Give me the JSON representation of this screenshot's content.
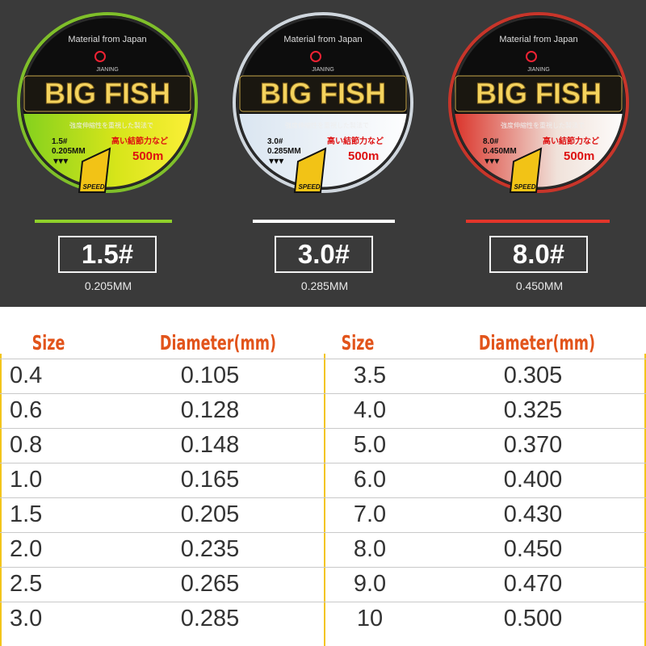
{
  "spools": [
    {
      "material": "Material from Japan",
      "brand": "JIANING",
      "title": "BIG FISH",
      "jp_line": "強度伸縮性を重視した製法で",
      "jp_sub": "高い結節力など",
      "size": "1.5#",
      "diameter": "0.205MM",
      "length": "500m",
      "speed": "SPEED",
      "size_label": "1.5#",
      "mm_label": "0.205MM",
      "color": "#8fd12a"
    },
    {
      "material": "Material from Japan",
      "brand": "JIANING",
      "title": "BIG FISH",
      "jp_line": "強度伸縮性を重視した製法で",
      "jp_sub": "高い結節力など",
      "size": "3.0#",
      "diameter": "0.285MM",
      "length": "500m",
      "speed": "SPEED",
      "size_label": "3.0#",
      "mm_label": "0.285MM",
      "color": "#ffffff"
    },
    {
      "material": "Material from Japan",
      "brand": "JIANING",
      "title": "BIG FISH",
      "jp_line": "強度伸縮性を重視した製法で",
      "jp_sub": "高い結節力など",
      "size": "8.0#",
      "diameter": "0.450MM",
      "length": "500m",
      "speed": "SPEED",
      "size_label": "8.0#",
      "mm_label": "0.450MM",
      "color": "#e3352a"
    }
  ],
  "table": {
    "headers": {
      "size_left": "Size",
      "diameter_left": "Diameter(mm)",
      "size_right": "Size",
      "diameter_right": "Diameter(mm)"
    },
    "rows": [
      {
        "size_left": "0.4",
        "diameter_left": "0.105",
        "size_right": "3.5",
        "diameter_right": "0.305"
      },
      {
        "size_left": "0.6",
        "diameter_left": "0.128",
        "size_right": "4.0",
        "diameter_right": "0.325"
      },
      {
        "size_left": "0.8",
        "diameter_left": "0.148",
        "size_right": "5.0",
        "diameter_right": "0.370"
      },
      {
        "size_left": "1.0",
        "diameter_left": "0.165",
        "size_right": "6.0",
        "diameter_right": "0.400"
      },
      {
        "size_left": "1.5",
        "diameter_left": "0.205",
        "size_right": "7.0",
        "diameter_right": "0.430"
      },
      {
        "size_left": "2.0",
        "diameter_left": "0.235",
        "size_right": "8.0",
        "diameter_right": "0.450"
      },
      {
        "size_left": "2.5",
        "diameter_left": "0.265",
        "size_right": "9.0",
        "diameter_right": "0.470"
      },
      {
        "size_left": "3.0",
        "diameter_left": "0.285",
        "size_right": "10",
        "diameter_right": "0.500"
      }
    ]
  },
  "colors": {
    "header_text": "#e2541b",
    "divider": "#f3c51a",
    "background_top": "#3a3a3a"
  }
}
